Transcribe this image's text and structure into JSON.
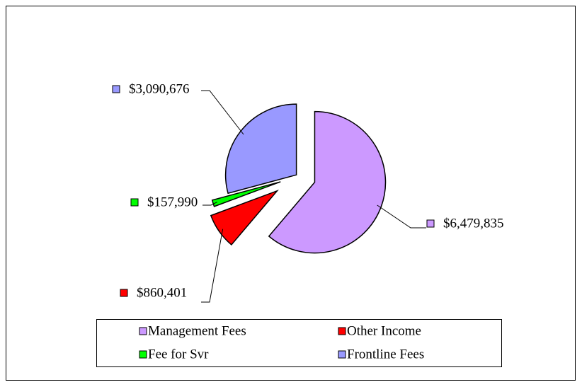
{
  "chart_data": {
    "type": "pie",
    "categories": [
      "Management Fees",
      "Other Income",
      "Fee for Svr",
      "Frontline Fees"
    ],
    "values": [
      6479835,
      860401,
      157990,
      3090676
    ],
    "value_labels": [
      "$6,479,835",
      "$860,401",
      "$157,990",
      "$3,090,676"
    ],
    "colors": [
      "#cc99ff",
      "#ff0000",
      "#00ff00",
      "#9999ff"
    ],
    "legend": "bottom"
  }
}
